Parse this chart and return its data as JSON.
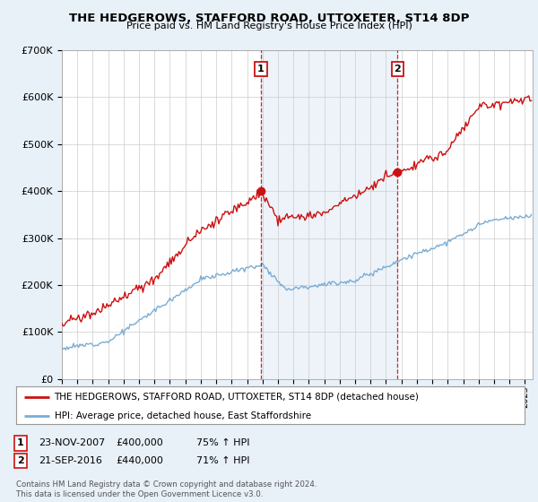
{
  "title": "THE HEDGEROWS, STAFFORD ROAD, UTTOXETER, ST14 8DP",
  "subtitle": "Price paid vs. HM Land Registry's House Price Index (HPI)",
  "legend_line1": "THE HEDGEROWS, STAFFORD ROAD, UTTOXETER, ST14 8DP (detached house)",
  "legend_line2": "HPI: Average price, detached house, East Staffordshire",
  "annotation1_date": "23-NOV-2007",
  "annotation1_price": "£400,000",
  "annotation1_hpi": "75% ↑ HPI",
  "annotation2_date": "21-SEP-2016",
  "annotation2_price": "£440,000",
  "annotation2_hpi": "71% ↑ HPI",
  "footnote": "Contains HM Land Registry data © Crown copyright and database right 2024.\nThis data is licensed under the Open Government Licence v3.0.",
  "red_color": "#cc1111",
  "blue_color": "#7aadd4",
  "vline_color": "#cc1111",
  "background_color": "#e8f0f8",
  "plot_bg_color": "#ffffff",
  "shade_color": "#ccddef",
  "ylim": [
    0,
    700000
  ],
  "xlim_start": 1995.0,
  "xlim_end": 2025.5,
  "purchase1_x": 2007.9,
  "purchase1_y_red": 400000,
  "purchase2_x": 2016.75,
  "purchase2_y_red": 440000
}
